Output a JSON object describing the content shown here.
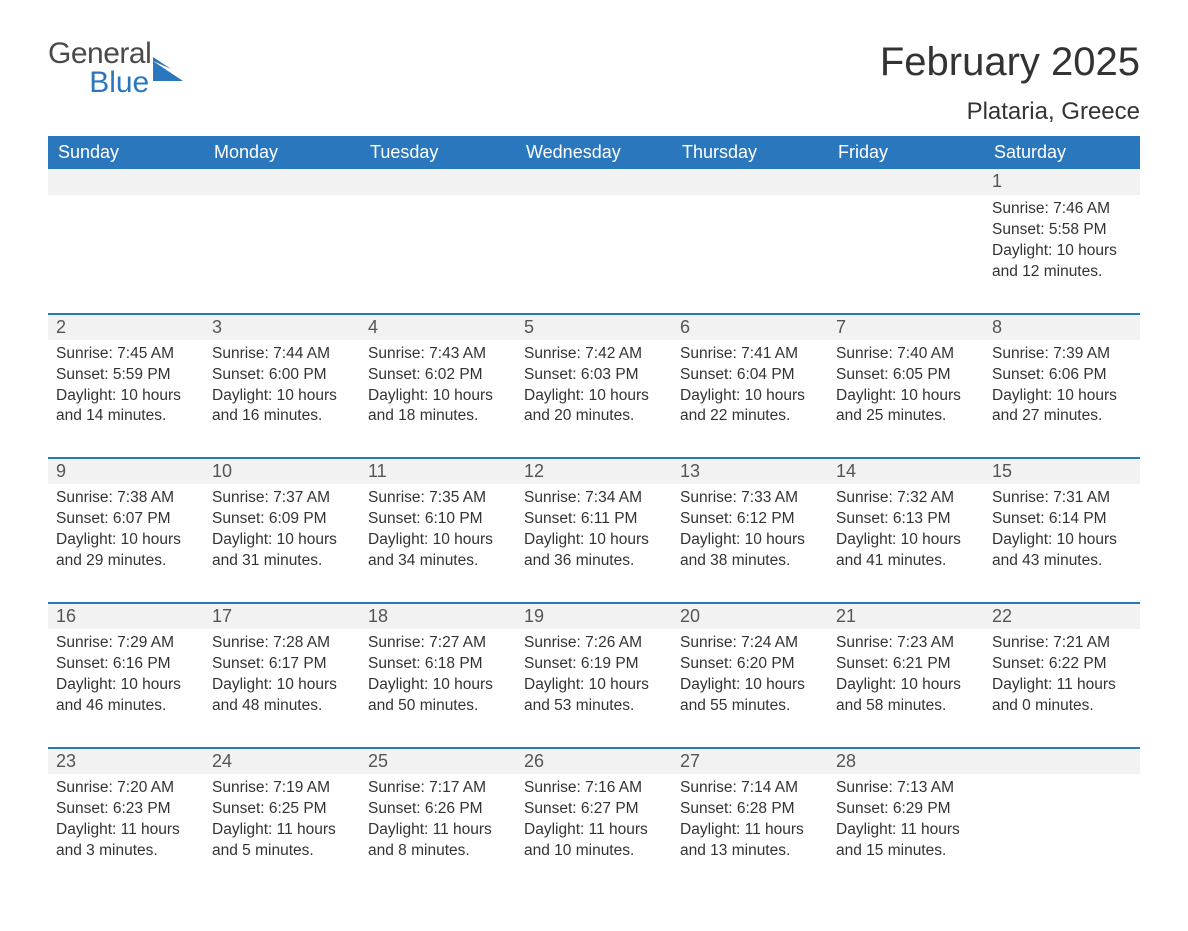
{
  "logo": {
    "general": "General",
    "blue": "Blue"
  },
  "header": {
    "month_title": "February 2025",
    "location": "Plataria, Greece"
  },
  "colors": {
    "brand_blue": "#2b77bd",
    "header_bg": "#2b77bd",
    "header_text": "#ffffff",
    "daynum_bg": "#f2f2f2",
    "row_border": "#2b77bd",
    "body_text": "#333333",
    "page_bg": "#ffffff"
  },
  "weekdays": [
    "Sunday",
    "Monday",
    "Tuesday",
    "Wednesday",
    "Thursday",
    "Friday",
    "Saturday"
  ],
  "weeks": [
    {
      "nums": [
        "",
        "",
        "",
        "",
        "",
        "",
        "1"
      ],
      "data": [
        null,
        null,
        null,
        null,
        null,
        null,
        {
          "sunrise": "Sunrise: 7:46 AM",
          "sunset": "Sunset: 5:58 PM",
          "dl1": "Daylight: 10 hours",
          "dl2": "and 12 minutes."
        }
      ]
    },
    {
      "nums": [
        "2",
        "3",
        "4",
        "5",
        "6",
        "7",
        "8"
      ],
      "data": [
        {
          "sunrise": "Sunrise: 7:45 AM",
          "sunset": "Sunset: 5:59 PM",
          "dl1": "Daylight: 10 hours",
          "dl2": "and 14 minutes."
        },
        {
          "sunrise": "Sunrise: 7:44 AM",
          "sunset": "Sunset: 6:00 PM",
          "dl1": "Daylight: 10 hours",
          "dl2": "and 16 minutes."
        },
        {
          "sunrise": "Sunrise: 7:43 AM",
          "sunset": "Sunset: 6:02 PM",
          "dl1": "Daylight: 10 hours",
          "dl2": "and 18 minutes."
        },
        {
          "sunrise": "Sunrise: 7:42 AM",
          "sunset": "Sunset: 6:03 PM",
          "dl1": "Daylight: 10 hours",
          "dl2": "and 20 minutes."
        },
        {
          "sunrise": "Sunrise: 7:41 AM",
          "sunset": "Sunset: 6:04 PM",
          "dl1": "Daylight: 10 hours",
          "dl2": "and 22 minutes."
        },
        {
          "sunrise": "Sunrise: 7:40 AM",
          "sunset": "Sunset: 6:05 PM",
          "dl1": "Daylight: 10 hours",
          "dl2": "and 25 minutes."
        },
        {
          "sunrise": "Sunrise: 7:39 AM",
          "sunset": "Sunset: 6:06 PM",
          "dl1": "Daylight: 10 hours",
          "dl2": "and 27 minutes."
        }
      ]
    },
    {
      "nums": [
        "9",
        "10",
        "11",
        "12",
        "13",
        "14",
        "15"
      ],
      "data": [
        {
          "sunrise": "Sunrise: 7:38 AM",
          "sunset": "Sunset: 6:07 PM",
          "dl1": "Daylight: 10 hours",
          "dl2": "and 29 minutes."
        },
        {
          "sunrise": "Sunrise: 7:37 AM",
          "sunset": "Sunset: 6:09 PM",
          "dl1": "Daylight: 10 hours",
          "dl2": "and 31 minutes."
        },
        {
          "sunrise": "Sunrise: 7:35 AM",
          "sunset": "Sunset: 6:10 PM",
          "dl1": "Daylight: 10 hours",
          "dl2": "and 34 minutes."
        },
        {
          "sunrise": "Sunrise: 7:34 AM",
          "sunset": "Sunset: 6:11 PM",
          "dl1": "Daylight: 10 hours",
          "dl2": "and 36 minutes."
        },
        {
          "sunrise": "Sunrise: 7:33 AM",
          "sunset": "Sunset: 6:12 PM",
          "dl1": "Daylight: 10 hours",
          "dl2": "and 38 minutes."
        },
        {
          "sunrise": "Sunrise: 7:32 AM",
          "sunset": "Sunset: 6:13 PM",
          "dl1": "Daylight: 10 hours",
          "dl2": "and 41 minutes."
        },
        {
          "sunrise": "Sunrise: 7:31 AM",
          "sunset": "Sunset: 6:14 PM",
          "dl1": "Daylight: 10 hours",
          "dl2": "and 43 minutes."
        }
      ]
    },
    {
      "nums": [
        "16",
        "17",
        "18",
        "19",
        "20",
        "21",
        "22"
      ],
      "data": [
        {
          "sunrise": "Sunrise: 7:29 AM",
          "sunset": "Sunset: 6:16 PM",
          "dl1": "Daylight: 10 hours",
          "dl2": "and 46 minutes."
        },
        {
          "sunrise": "Sunrise: 7:28 AM",
          "sunset": "Sunset: 6:17 PM",
          "dl1": "Daylight: 10 hours",
          "dl2": "and 48 minutes."
        },
        {
          "sunrise": "Sunrise: 7:27 AM",
          "sunset": "Sunset: 6:18 PM",
          "dl1": "Daylight: 10 hours",
          "dl2": "and 50 minutes."
        },
        {
          "sunrise": "Sunrise: 7:26 AM",
          "sunset": "Sunset: 6:19 PM",
          "dl1": "Daylight: 10 hours",
          "dl2": "and 53 minutes."
        },
        {
          "sunrise": "Sunrise: 7:24 AM",
          "sunset": "Sunset: 6:20 PM",
          "dl1": "Daylight: 10 hours",
          "dl2": "and 55 minutes."
        },
        {
          "sunrise": "Sunrise: 7:23 AM",
          "sunset": "Sunset: 6:21 PM",
          "dl1": "Daylight: 10 hours",
          "dl2": "and 58 minutes."
        },
        {
          "sunrise": "Sunrise: 7:21 AM",
          "sunset": "Sunset: 6:22 PM",
          "dl1": "Daylight: 11 hours",
          "dl2": "and 0 minutes."
        }
      ]
    },
    {
      "nums": [
        "23",
        "24",
        "25",
        "26",
        "27",
        "28",
        ""
      ],
      "data": [
        {
          "sunrise": "Sunrise: 7:20 AM",
          "sunset": "Sunset: 6:23 PM",
          "dl1": "Daylight: 11 hours",
          "dl2": "and 3 minutes."
        },
        {
          "sunrise": "Sunrise: 7:19 AM",
          "sunset": "Sunset: 6:25 PM",
          "dl1": "Daylight: 11 hours",
          "dl2": "and 5 minutes."
        },
        {
          "sunrise": "Sunrise: 7:17 AM",
          "sunset": "Sunset: 6:26 PM",
          "dl1": "Daylight: 11 hours",
          "dl2": "and 8 minutes."
        },
        {
          "sunrise": "Sunrise: 7:16 AM",
          "sunset": "Sunset: 6:27 PM",
          "dl1": "Daylight: 11 hours",
          "dl2": "and 10 minutes."
        },
        {
          "sunrise": "Sunrise: 7:14 AM",
          "sunset": "Sunset: 6:28 PM",
          "dl1": "Daylight: 11 hours",
          "dl2": "and 13 minutes."
        },
        {
          "sunrise": "Sunrise: 7:13 AM",
          "sunset": "Sunset: 6:29 PM",
          "dl1": "Daylight: 11 hours",
          "dl2": "and 15 minutes."
        },
        null
      ]
    }
  ]
}
